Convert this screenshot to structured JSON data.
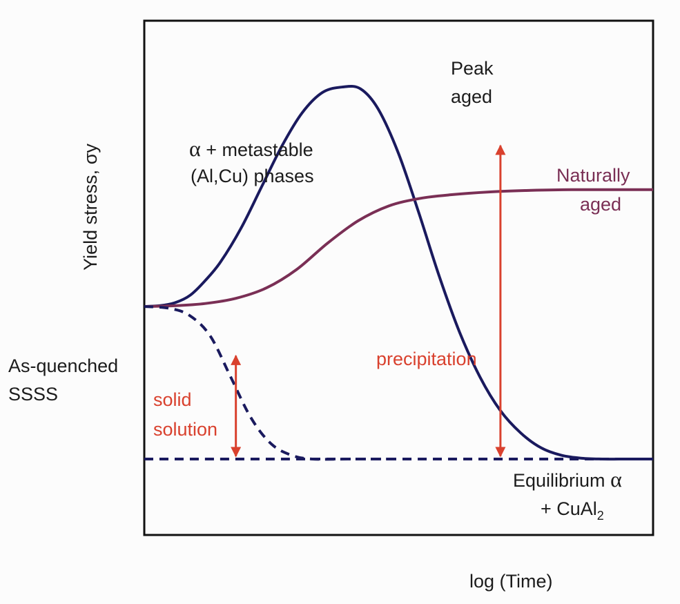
{
  "chart_data": {
    "type": "line",
    "title": "",
    "xlabel": "log (Time)",
    "ylabel": "Yield stress, σy",
    "grid": false,
    "legend": "none",
    "colors": {
      "peak": "#1a1a5e",
      "natural": "#7a2f55",
      "baseline": "#1a1a5e",
      "annotation": "#d9412e",
      "frame": "#111111"
    },
    "series": [
      {
        "style": "solid",
        "points": [
          [
            0.0,
            0.41
          ],
          [
            0.03,
            0.412
          ],
          [
            0.06,
            0.42
          ],
          [
            0.09,
            0.44
          ],
          [
            0.12,
            0.48
          ],
          [
            0.15,
            0.53
          ],
          [
            0.19,
            0.62
          ],
          [
            0.23,
            0.73
          ],
          [
            0.27,
            0.84
          ],
          [
            0.31,
            0.93
          ],
          [
            0.35,
            0.985
          ],
          [
            0.39,
            1.0
          ],
          [
            0.425,
            0.995
          ],
          [
            0.46,
            0.94
          ],
          [
            0.5,
            0.82
          ],
          [
            0.54,
            0.66
          ],
          [
            0.58,
            0.49
          ],
          [
            0.62,
            0.34
          ],
          [
            0.66,
            0.22
          ],
          [
            0.7,
            0.13
          ],
          [
            0.74,
            0.07
          ],
          [
            0.78,
            0.03
          ],
          [
            0.82,
            0.01
          ],
          [
            0.86,
            0.002
          ],
          [
            0.9,
            0.0
          ],
          [
            0.95,
            0.0
          ],
          [
            1.0,
            0.0
          ]
        ]
      },
      {
        "style": "solid",
        "points": [
          [
            0.0,
            0.41
          ],
          [
            0.06,
            0.412
          ],
          [
            0.12,
            0.418
          ],
          [
            0.18,
            0.432
          ],
          [
            0.24,
            0.46
          ],
          [
            0.3,
            0.51
          ],
          [
            0.36,
            0.58
          ],
          [
            0.42,
            0.64
          ],
          [
            0.48,
            0.68
          ],
          [
            0.54,
            0.7
          ],
          [
            0.6,
            0.71
          ],
          [
            0.68,
            0.718
          ],
          [
            0.76,
            0.722
          ],
          [
            0.84,
            0.724
          ],
          [
            0.92,
            0.724
          ],
          [
            1.0,
            0.724
          ]
        ]
      },
      {
        "style": "dashed",
        "points": [
          [
            0.0,
            0.41
          ],
          [
            0.05,
            0.405
          ],
          [
            0.09,
            0.385
          ],
          [
            0.13,
            0.33
          ],
          [
            0.17,
            0.22
          ],
          [
            0.21,
            0.11
          ],
          [
            0.25,
            0.04
          ],
          [
            0.29,
            0.01
          ],
          [
            0.33,
            0.0
          ],
          [
            0.4,
            0.0
          ],
          [
            0.5,
            0.0
          ]
        ]
      },
      {
        "style": "dashed",
        "points": [
          [
            0.0,
            0.0
          ],
          [
            1.0,
            0.0
          ]
        ]
      }
    ],
    "arrows": [
      {
        "x": 0.18,
        "y_from": 0.0,
        "y_to": 0.285
      },
      {
        "x": 0.7,
        "y_from": 0.0,
        "y_to": 0.85
      }
    ],
    "annotations": {
      "peak_line1": "Peak",
      "peak_line2": "aged",
      "metastable_greek": "α",
      "metastable_rest": " + metastable",
      "metastable_line2": "(Al,Cu) phases",
      "natural_line1": "Naturally",
      "natural_line2": "aged",
      "quenched_line1": "As-quenched",
      "quenched_line2": "SSSS",
      "solid_line1": "solid",
      "solid_line2": "solution",
      "precipitation": "precipitation",
      "equilibrium_line1": "Equilibrium ",
      "equilibrium_greek": "α",
      "equilibrium_line2": "+ CuAl",
      "equilibrium_sub": "2"
    }
  }
}
